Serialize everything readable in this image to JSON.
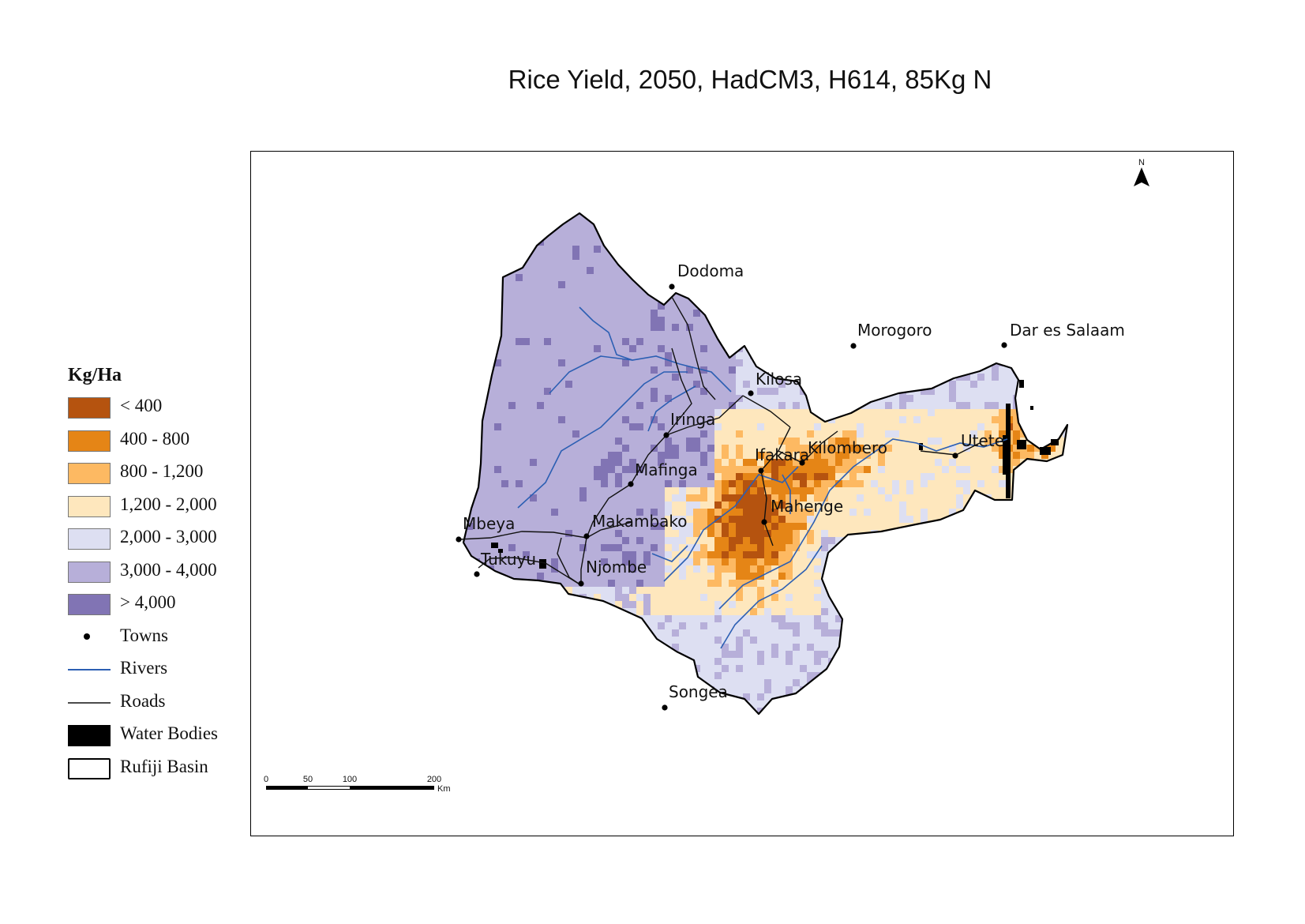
{
  "title": "Rice Yield, 2050, HadCM3, H614, 85Kg N",
  "legend": {
    "title": "Kg/Ha",
    "classes": [
      {
        "label": "< 400",
        "color": "#b5530f"
      },
      {
        "label": "400 - 800",
        "color": "#e58516"
      },
      {
        "label": "800 - 1,200",
        "color": "#fdb962"
      },
      {
        "label": "1,200 - 2,000",
        "color": "#fee7bd"
      },
      {
        "label": "2,000 - 3,000",
        "color": "#dddff2"
      },
      {
        "label": "3,000 - 4,000",
        "color": "#b7afd9"
      },
      {
        "label": "> 4,000",
        "color": "#8174b4"
      }
    ],
    "towns_label": "Towns",
    "rivers_label": "Rivers",
    "roads_label": "Roads",
    "water_label": "Water Bodies",
    "basin_label": "Rufiji Basin"
  },
  "colors": {
    "river": "#2c5fb3",
    "road": "#111111",
    "water": "#000000",
    "boundary": "#000000"
  },
  "towns": [
    {
      "name": "Dodoma"
    },
    {
      "name": "Morogoro"
    },
    {
      "name": "Dar es Salaam"
    },
    {
      "name": "Kilosa"
    },
    {
      "name": "Iringa"
    },
    {
      "name": "Utete"
    },
    {
      "name": "Kilombero"
    },
    {
      "name": "Ifakara"
    },
    {
      "name": "Mafinga"
    },
    {
      "name": "Mahenge"
    },
    {
      "name": "Mbeya"
    },
    {
      "name": "Makambako"
    },
    {
      "name": "Tukuyu"
    },
    {
      "name": "Njombe"
    },
    {
      "name": "Songea"
    }
  ],
  "scalebar": {
    "ticks": [
      "0",
      "50",
      "100",
      "200"
    ],
    "unit": "Km"
  },
  "north_arrow": {
    "label": "N",
    "icon": "north-arrow-icon"
  }
}
